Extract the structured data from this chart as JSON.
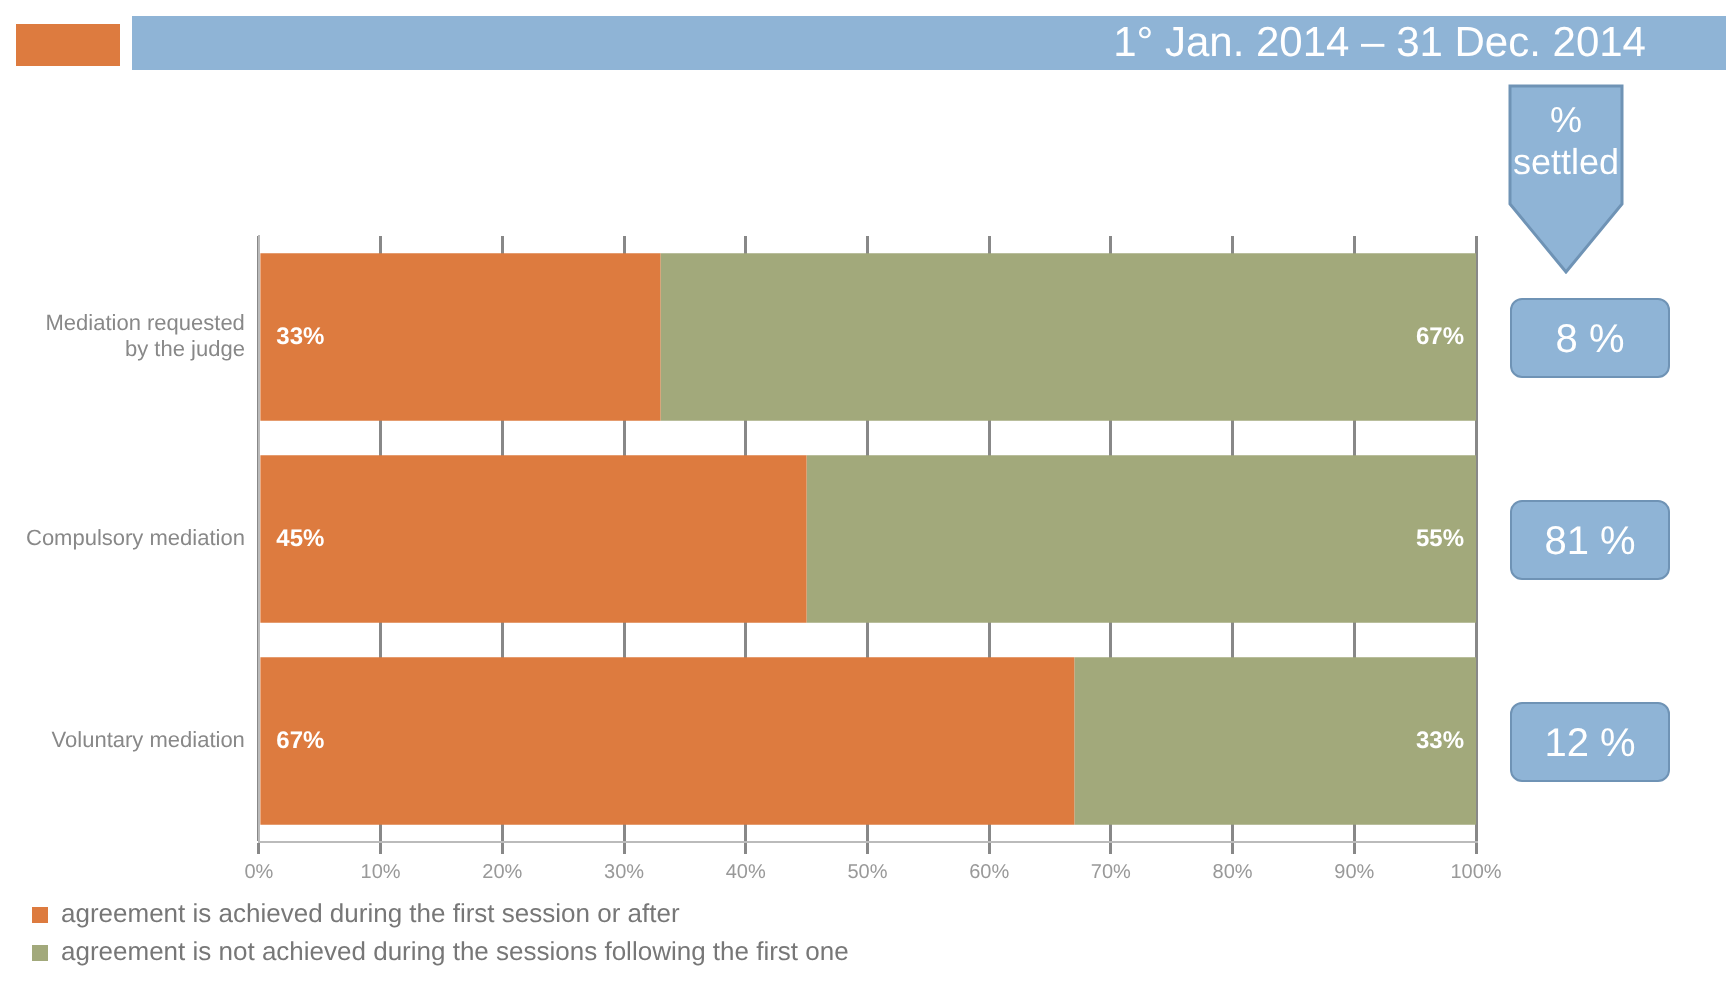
{
  "chart_data": {
    "type": "bar",
    "orientation": "horizontal",
    "stacked": true,
    "subtitle": "1° Jan. 2014 – 31 Dec. 2014",
    "categories": [
      "Mediation requested by the judge",
      "Compulsory mediation",
      "Voluntary mediation"
    ],
    "series": [
      {
        "name": "agreement is achieved during the first session or after",
        "color": "#dd7b3f",
        "values": [
          33,
          45,
          67
        ],
        "value_labels": [
          "33%",
          "45%",
          "67%"
        ]
      },
      {
        "name": "agreement is not achieved during the sessions following the first one",
        "color": "#a2a97b",
        "values": [
          67,
          55,
          33
        ],
        "value_labels": [
          "67%",
          "55%",
          "33%"
        ]
      }
    ],
    "xlim": [
      0,
      100
    ],
    "xticks": [
      {
        "value": 0,
        "label": "0%"
      },
      {
        "value": 10,
        "label": "10%"
      },
      {
        "value": 20,
        "label": "20%"
      },
      {
        "value": 30,
        "label": "30%"
      },
      {
        "value": 40,
        "label": "40%"
      },
      {
        "value": 50,
        "label": "50%"
      },
      {
        "value": 60,
        "label": "60%"
      },
      {
        "value": 70,
        "label": "70%"
      },
      {
        "value": 80,
        "label": "80%"
      },
      {
        "value": 90,
        "label": "90%"
      },
      {
        "value": 100,
        "label": "100%"
      }
    ],
    "grid": "x",
    "legend": "bottom",
    "annotations": [
      "% settled",
      "8 %",
      "81 %",
      "12 %"
    ]
  }
}
